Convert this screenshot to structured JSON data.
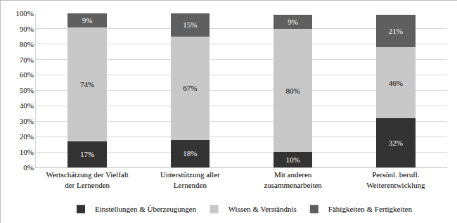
{
  "chart_data": {
    "type": "bar",
    "stacked": true,
    "data_labels": true,
    "grid": true,
    "legend": "bottom",
    "categories": [
      "Wertschätzung der Vielfalt\nder Lernenden",
      "Unterstützung aller\nLernenden",
      "Mit anderen\nzusammenarbeiten",
      "Persönl. berufl.\nWeiterentwicklung"
    ],
    "series": [
      {
        "name": "Einstellungen & Überzeugungen",
        "color": "#333333",
        "values": [
          17,
          18,
          10,
          32
        ],
        "value_labels": [
          "17%",
          "18%",
          "10%",
          "32%"
        ]
      },
      {
        "name": "Wissen & Verständnis",
        "color": "#c8c8c8",
        "values": [
          74,
          67,
          80,
          46
        ],
        "value_labels": [
          "74%",
          "67%",
          "80%",
          "46%"
        ]
      },
      {
        "name": "Fähigkeiten & Fertigkeiten",
        "color": "#5f5f5f",
        "values": [
          9,
          15,
          9,
          21
        ],
        "value_labels": [
          "9%",
          "15%",
          "9%",
          "21%"
        ]
      }
    ],
    "ylim": [
      0,
      100
    ],
    "yticks": [
      {
        "value": 0,
        "label": "0%"
      },
      {
        "value": 10,
        "label": "10%"
      },
      {
        "value": 20,
        "label": "20%"
      },
      {
        "value": 30,
        "label": "30%"
      },
      {
        "value": 40,
        "label": "40%"
      },
      {
        "value": 50,
        "label": "50%"
      },
      {
        "value": 60,
        "label": "60%"
      },
      {
        "value": 70,
        "label": "70%"
      },
      {
        "value": 80,
        "label": "80%"
      },
      {
        "value": 90,
        "label": "90%"
      },
      {
        "value": 100,
        "label": "100%"
      }
    ]
  }
}
